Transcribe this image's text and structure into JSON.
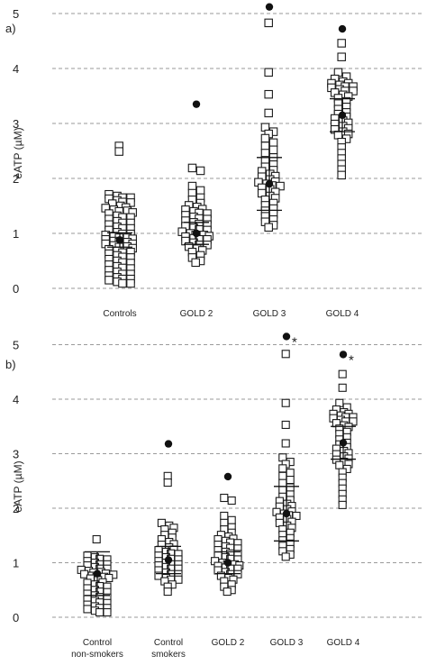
{
  "chart_data": [
    {
      "type": "scatter",
      "panel_label": "a)",
      "ylabel": "eATP (µM)",
      "ylim": [
        0,
        5
      ],
      "yticks": [
        "0",
        "1",
        "2",
        "3",
        "4",
        "5"
      ],
      "grid": "horizontal dashed",
      "categories": [
        {
          "label": "Controls",
          "mean": 0.88,
          "sd": 0.13,
          "outliers": [],
          "values": [
            2.58,
            2.48,
            1.7,
            1.68,
            1.66,
            1.64,
            1.62,
            1.6,
            1.58,
            1.55,
            1.53,
            1.5,
            1.48,
            1.45,
            1.43,
            1.41,
            1.4,
            1.38,
            1.35,
            1.32,
            1.3,
            1.28,
            1.25,
            1.22,
            1.2,
            1.18,
            1.15,
            1.12,
            1.1,
            1.08,
            1.05,
            1.02,
            1.0,
            0.98,
            0.96,
            0.95,
            0.93,
            0.91,
            0.9,
            0.88,
            0.86,
            0.85,
            0.83,
            0.81,
            0.8,
            0.78,
            0.76,
            0.75,
            0.73,
            0.7,
            0.68,
            0.66,
            0.65,
            0.62,
            0.6,
            0.58,
            0.55,
            0.52,
            0.5,
            0.48,
            0.45,
            0.42,
            0.4,
            0.38,
            0.35,
            0.32,
            0.3,
            0.27,
            0.25,
            0.22,
            0.2,
            0.18,
            0.16,
            0.14,
            0.12,
            0.1,
            0.08
          ]
        },
        {
          "label": "GOLD 2",
          "mean": 1.0,
          "sd": 0.2,
          "outliers": [
            3.35
          ],
          "values": [
            2.18,
            2.14,
            1.85,
            1.78,
            1.72,
            1.65,
            1.6,
            1.55,
            1.5,
            1.48,
            1.45,
            1.42,
            1.4,
            1.38,
            1.35,
            1.32,
            1.3,
            1.28,
            1.25,
            1.22,
            1.2,
            1.18,
            1.15,
            1.12,
            1.1,
            1.08,
            1.05,
            1.02,
            1.0,
            0.98,
            0.96,
            0.95,
            0.93,
            0.91,
            0.9,
            0.88,
            0.85,
            0.83,
            0.8,
            0.78,
            0.75,
            0.72,
            0.7,
            0.65,
            0.6,
            0.55,
            0.5,
            0.46
          ]
        },
        {
          "label": "GOLD 3",
          "mean": 1.9,
          "sd": 0.48,
          "outliers": [
            5.12
          ],
          "values": [
            4.82,
            3.92,
            3.52,
            3.18,
            2.92,
            2.85,
            2.8,
            2.72,
            2.65,
            2.58,
            2.52,
            2.45,
            2.38,
            2.32,
            2.25,
            2.2,
            2.15,
            2.12,
            2.08,
            2.05,
            2.02,
            1.98,
            1.95,
            1.92,
            1.9,
            1.88,
            1.85,
            1.82,
            1.8,
            1.76,
            1.72,
            1.68,
            1.65,
            1.6,
            1.55,
            1.5,
            1.45,
            1.4,
            1.35,
            1.3,
            1.25,
            1.2,
            1.15,
            1.1
          ]
        },
        {
          "label": "GOLD 4",
          "mean": 3.15,
          "sd": 0.3,
          "outliers": [
            4.72
          ],
          "values": [
            4.45,
            4.2,
            3.92,
            3.85,
            3.8,
            3.76,
            3.74,
            3.72,
            3.7,
            3.68,
            3.66,
            3.64,
            3.62,
            3.6,
            3.58,
            3.55,
            3.52,
            3.5,
            3.45,
            3.4,
            3.35,
            3.3,
            3.25,
            3.2,
            3.16,
            3.12,
            3.08,
            3.05,
            3.02,
            2.98,
            2.95,
            2.92,
            2.88,
            2.85,
            2.82,
            2.78,
            2.72,
            2.65,
            2.55,
            2.45,
            2.35,
            2.25,
            2.15,
            2.05
          ]
        }
      ]
    },
    {
      "type": "scatter",
      "panel_label": "b)",
      "ylabel": "eATP (µM)",
      "ylim": [
        0,
        5
      ],
      "yticks": [
        "0",
        "1",
        "2",
        "3",
        "4",
        "5"
      ],
      "grid": "horizontal dashed",
      "categories": [
        {
          "label": "Control non-smokers",
          "label_lines": [
            "Control",
            "non-smokers"
          ],
          "mean": 0.8,
          "sd": 0.4,
          "outliers": [],
          "star": false,
          "values": [
            1.42,
            1.12,
            1.1,
            1.08,
            1.05,
            1.02,
            1.0,
            0.98,
            0.96,
            0.94,
            0.92,
            0.9,
            0.88,
            0.86,
            0.85,
            0.83,
            0.82,
            0.8,
            0.79,
            0.78,
            0.76,
            0.75,
            0.73,
            0.72,
            0.7,
            0.68,
            0.65,
            0.62,
            0.6,
            0.58,
            0.55,
            0.52,
            0.5,
            0.48,
            0.45,
            0.42,
            0.4,
            0.38,
            0.35,
            0.32,
            0.3,
            0.28,
            0.25,
            0.22,
            0.2,
            0.18,
            0.16,
            0.14,
            0.12,
            0.1,
            0.08
          ]
        },
        {
          "label": "Control smokers",
          "label_lines": [
            "Control",
            "smokers"
          ],
          "mean": 1.05,
          "sd": 0.25,
          "outliers": [
            3.18
          ],
          "star": false,
          "values": [
            2.58,
            2.46,
            1.72,
            1.68,
            1.65,
            1.6,
            1.55,
            1.5,
            1.46,
            1.42,
            1.38,
            1.35,
            1.32,
            1.28,
            1.25,
            1.22,
            1.2,
            1.18,
            1.15,
            1.12,
            1.1,
            1.08,
            1.05,
            1.02,
            1.0,
            0.98,
            0.96,
            0.94,
            0.92,
            0.9,
            0.88,
            0.85,
            0.82,
            0.8,
            0.78,
            0.75,
            0.72,
            0.7,
            0.68,
            0.65,
            0.6,
            0.55,
            0.46
          ]
        },
        {
          "label": "GOLD 2",
          "label_lines": [
            "GOLD 2"
          ],
          "mean": 1.0,
          "sd": 0.2,
          "outliers": [
            2.58
          ],
          "star": false,
          "values": [
            2.18,
            2.14,
            1.85,
            1.78,
            1.72,
            1.65,
            1.6,
            1.55,
            1.5,
            1.48,
            1.45,
            1.42,
            1.4,
            1.38,
            1.35,
            1.32,
            1.3,
            1.28,
            1.25,
            1.22,
            1.2,
            1.18,
            1.15,
            1.12,
            1.1,
            1.08,
            1.05,
            1.02,
            1.0,
            0.98,
            0.96,
            0.95,
            0.93,
            0.91,
            0.9,
            0.88,
            0.85,
            0.83,
            0.8,
            0.78,
            0.75,
            0.72,
            0.7,
            0.65,
            0.6,
            0.55,
            0.5,
            0.46
          ]
        },
        {
          "label": "GOLD 3",
          "label_lines": [
            "GOLD 3"
          ],
          "mean": 1.9,
          "sd": 0.5,
          "outliers": [
            5.15
          ],
          "star": true,
          "values": [
            4.82,
            3.92,
            3.52,
            3.18,
            2.92,
            2.85,
            2.8,
            2.72,
            2.65,
            2.58,
            2.52,
            2.45,
            2.38,
            2.32,
            2.25,
            2.2,
            2.15,
            2.12,
            2.08,
            2.05,
            2.02,
            1.98,
            1.95,
            1.92,
            1.9,
            1.88,
            1.85,
            1.82,
            1.8,
            1.76,
            1.72,
            1.68,
            1.65,
            1.6,
            1.55,
            1.5,
            1.45,
            1.4,
            1.35,
            1.3,
            1.25,
            1.2,
            1.15,
            1.1
          ]
        },
        {
          "label": "GOLD 4",
          "label_lines": [
            "GOLD 4"
          ],
          "mean": 3.2,
          "sd": 0.3,
          "outliers": [
            4.82
          ],
          "star": true,
          "values": [
            4.45,
            4.2,
            3.92,
            3.85,
            3.8,
            3.76,
            3.74,
            3.72,
            3.7,
            3.68,
            3.66,
            3.64,
            3.62,
            3.6,
            3.58,
            3.55,
            3.52,
            3.5,
            3.45,
            3.4,
            3.35,
            3.3,
            3.25,
            3.2,
            3.16,
            3.12,
            3.08,
            3.05,
            3.02,
            2.98,
            2.95,
            2.92,
            2.88,
            2.85,
            2.82,
            2.78,
            2.72,
            2.65,
            2.55,
            2.45,
            2.35,
            2.25,
            2.15,
            2.05
          ]
        }
      ],
      "annotation_symbol": "*"
    }
  ]
}
